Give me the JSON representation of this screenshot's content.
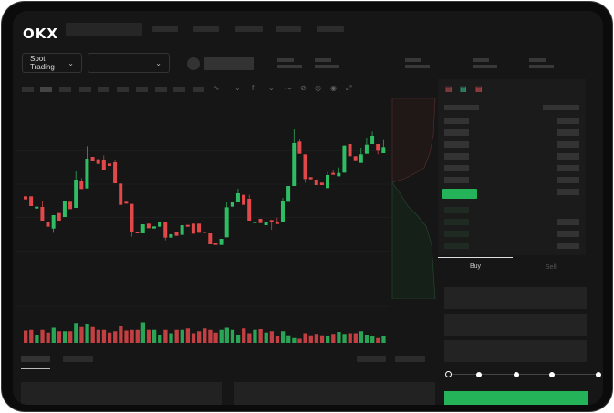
{
  "header": {
    "logo": "OKX"
  },
  "toolbar": {
    "market_select": "Spot Trading"
  },
  "order_form": {
    "tabs": [
      {
        "label": "Buy",
        "active": true
      },
      {
        "label": "Sell",
        "active": false
      }
    ],
    "leverage_slider_value": 0
  },
  "colors": {
    "up": "#2ebd63",
    "down": "#e0484a",
    "background": "#161616"
  },
  "chart_data": {
    "type": "candlestick",
    "title": "",
    "xlabel": "",
    "ylabel": "",
    "candles_ohlc": [
      [
        50,
        50,
        48,
        48
      ],
      [
        50,
        50,
        43.6,
        43.6
      ],
      [
        42,
        43.2,
        42,
        43.2
      ],
      [
        43,
        47,
        34,
        34
      ],
      [
        33,
        33,
        30,
        30
      ],
      [
        28.8,
        37.6,
        26,
        37.6
      ],
      [
        39,
        39,
        34,
        34
      ],
      [
        36.4,
        47,
        36.4,
        47
      ],
      [
        46.4,
        46.4,
        41.6,
        41.6
      ],
      [
        42.4,
        66.4,
        42.4,
        61
      ],
      [
        60.4,
        62,
        54.8,
        54.8
      ],
      [
        55.2,
        83,
        55.2,
        74.8
      ],
      [
        76,
        76,
        73,
        73
      ],
      [
        74.4,
        74.4,
        71.4,
        71.4
      ],
      [
        74,
        77,
        67,
        67
      ],
      [
        71.6,
        71.6,
        70,
        70
      ],
      [
        72.4,
        74,
        58.6,
        58.6
      ],
      [
        58.4,
        58.4,
        44.4,
        44.4
      ],
      [
        46.4,
        46.4,
        45.2,
        45.2
      ],
      [
        45,
        45,
        23.4,
        26.4
      ],
      [
        26.6,
        26.6,
        25.6,
        25.6
      ],
      [
        25.6,
        31.6,
        25.6,
        31.6
      ],
      [
        32,
        32,
        29,
        29
      ],
      [
        28.8,
        30.2,
        28.8,
        30.2
      ],
      [
        30,
        33,
        30,
        33
      ],
      [
        33,
        33,
        21,
        22.8
      ],
      [
        22.8,
        25,
        22.8,
        25
      ],
      [
        26.2,
        26.2,
        24,
        24
      ],
      [
        24.6,
        31,
        24.6,
        31
      ],
      [
        31.2,
        31.2,
        30,
        30
      ],
      [
        32,
        32,
        25.4,
        25.4
      ],
      [
        32,
        32,
        26,
        26
      ],
      [
        26.8,
        26.8,
        26,
        26
      ],
      [
        25.6,
        25.6,
        18.4,
        18.4
      ],
      [
        19.2,
        19.2,
        18,
        18
      ],
      [
        18,
        22,
        18,
        22
      ],
      [
        23,
        46,
        23,
        42.8
      ],
      [
        43.2,
        46,
        43.2,
        46
      ],
      [
        46,
        55,
        46,
        52
      ],
      [
        51,
        51,
        44.4,
        44.4
      ],
      [
        48.4,
        51,
        34,
        34
      ],
      [
        32.4,
        33.4,
        32.4,
        33.4
      ],
      [
        35.2,
        35.2,
        32.4,
        32.4
      ],
      [
        31,
        33.4,
        31,
        33.4
      ],
      [
        34.4,
        34.4,
        28,
        33.4
      ],
      [
        32.8,
        36,
        31.8,
        31.8
      ],
      [
        33,
        49,
        33,
        46.8
      ],
      [
        46.4,
        56.8,
        46.4,
        56.8
      ],
      [
        56.8,
        94.4,
        56.8,
        85
      ],
      [
        86,
        87.6,
        78,
        78
      ],
      [
        77.6,
        77.6,
        59,
        61.4
      ],
      [
        62.6,
        62.6,
        61.2,
        61.2
      ],
      [
        61,
        61,
        57.4,
        57.4
      ],
      [
        59,
        59,
        57.4,
        57.4
      ],
      [
        55.4,
        66,
        55.4,
        64
      ],
      [
        65.4,
        67.6,
        64.2,
        64.2
      ],
      [
        63.2,
        69,
        63.2,
        65.4
      ],
      [
        65.6,
        83.4,
        65.6,
        83.4
      ],
      [
        84.4,
        84.4,
        76.4,
        76.4
      ],
      [
        76.4,
        76.4,
        73.2,
        73.2
      ],
      [
        72,
        82,
        72,
        77.6
      ],
      [
        78,
        88.6,
        78,
        84
      ],
      [
        84.4,
        92.6,
        84.4,
        89.8
      ],
      [
        84.4,
        84.4,
        77.6,
        80
      ],
      [
        78.4,
        87,
        78.4,
        82.4
      ]
    ],
    "volumes": [
      18,
      19,
      12,
      19,
      15,
      22,
      17,
      17,
      17,
      29,
      23,
      28,
      23,
      19,
      19,
      15,
      17,
      24,
      18,
      19,
      19,
      30,
      19,
      19,
      12,
      19,
      14,
      19,
      19,
      21,
      14,
      17,
      21,
      19,
      15,
      19,
      22,
      19,
      12,
      21,
      14,
      19,
      20,
      15,
      17,
      10,
      17,
      11,
      7,
      6,
      14,
      11,
      13,
      11,
      10,
      13,
      16,
      13,
      14,
      14,
      17,
      12,
      10,
      7,
      10
    ],
    "ylim": [
      0,
      100
    ],
    "grid": true
  }
}
